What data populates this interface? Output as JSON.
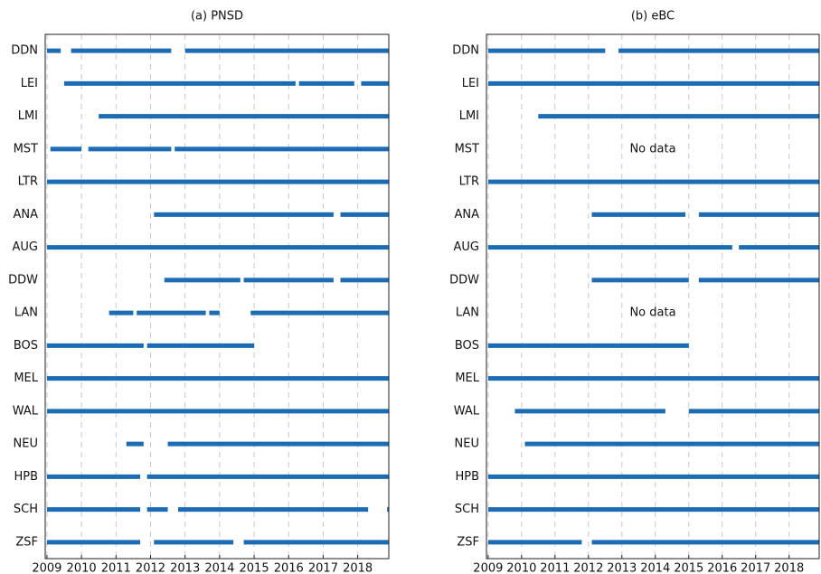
{
  "chart_data": [
    {
      "type": "timeline",
      "title": "(a) PNSD",
      "color": "#1c6cb4",
      "grid": true,
      "categories": [
        "DDN",
        "LEI",
        "LMI",
        "MST",
        "LTR",
        "ANA",
        "AUG",
        "DDW",
        "LAN",
        "BOS",
        "MEL",
        "WAL",
        "NEU",
        "HPB",
        "SCH",
        "ZSF"
      ],
      "ranges": [
        [
          [
            2009.0,
            2009.4
          ],
          [
            2009.7,
            2012.6
          ],
          [
            2013.0,
            2018.9
          ]
        ],
        [
          [
            2009.5,
            2016.2
          ],
          [
            2016.3,
            2017.9
          ],
          [
            2018.1,
            2018.9
          ]
        ],
        [
          [
            2010.5,
            2018.9
          ]
        ],
        [
          [
            2009.1,
            2010.0
          ],
          [
            2010.2,
            2012.6
          ],
          [
            2012.7,
            2018.9
          ]
        ],
        [
          [
            2009.0,
            2018.9
          ]
        ],
        [
          [
            2012.1,
            2017.3
          ],
          [
            2017.5,
            2018.9
          ]
        ],
        [
          [
            2009.0,
            2018.9
          ]
        ],
        [
          [
            2012.4,
            2014.6
          ],
          [
            2014.7,
            2017.3
          ],
          [
            2017.5,
            2018.9
          ]
        ],
        [
          [
            2010.8,
            2011.5
          ],
          [
            2011.6,
            2013.6
          ],
          [
            2013.7,
            2014.0
          ],
          [
            2014.9,
            2018.9
          ]
        ],
        [
          [
            2009.0,
            2011.8
          ],
          [
            2011.9,
            2015.0
          ]
        ],
        [
          [
            2009.0,
            2018.9
          ]
        ],
        [
          [
            2009.0,
            2018.9
          ]
        ],
        [
          [
            2011.3,
            2011.8
          ],
          [
            2012.5,
            2018.9
          ]
        ],
        [
          [
            2009.0,
            2011.7
          ],
          [
            2011.9,
            2018.9
          ]
        ],
        [
          [
            2009.0,
            2011.7
          ],
          [
            2011.9,
            2012.5
          ],
          [
            2012.8,
            2018.3
          ],
          [
            2018.85,
            2018.9
          ]
        ],
        [
          [
            2009.0,
            2011.7
          ],
          [
            2012.1,
            2014.4
          ],
          [
            2014.7,
            2018.9
          ]
        ]
      ],
      "annotations": [],
      "xlim": [
        2008.95,
        2018.9
      ],
      "xticks": [
        2009,
        2010,
        2011,
        2012,
        2013,
        2014,
        2015,
        2016,
        2017,
        2018
      ]
    },
    {
      "type": "timeline",
      "title": "(b) eBC",
      "color": "#1c6cb4",
      "grid": true,
      "categories": [
        "DDN",
        "LEI",
        "LMI",
        "MST",
        "LTR",
        "ANA",
        "AUG",
        "DDW",
        "LAN",
        "BOS",
        "MEL",
        "WAL",
        "NEU",
        "HPB",
        "SCH",
        "ZSF"
      ],
      "ranges": [
        [
          [
            2009.0,
            2012.5
          ],
          [
            2012.9,
            2018.9
          ]
        ],
        [
          [
            2009.0,
            2018.9
          ]
        ],
        [
          [
            2010.5,
            2018.9
          ]
        ],
        [],
        [
          [
            2009.0,
            2018.9
          ]
        ],
        [
          [
            2012.1,
            2014.9
          ],
          [
            2015.3,
            2018.9
          ]
        ],
        [
          [
            2009.0,
            2016.3
          ],
          [
            2016.5,
            2018.9
          ]
        ],
        [
          [
            2012.1,
            2015.0
          ],
          [
            2015.3,
            2018.9
          ]
        ],
        [],
        [
          [
            2009.0,
            2015.0
          ]
        ],
        [
          [
            2009.0,
            2018.9
          ]
        ],
        [
          [
            2009.8,
            2014.3
          ],
          [
            2015.0,
            2018.9
          ]
        ],
        [
          [
            2010.1,
            2018.9
          ]
        ],
        [
          [
            2009.0,
            2018.9
          ]
        ],
        [
          [
            2009.0,
            2018.9
          ]
        ],
        [
          [
            2009.0,
            2011.8
          ],
          [
            2012.1,
            2018.9
          ]
        ]
      ],
      "annotations": [
        {
          "text": "No data",
          "category": "MST"
        },
        {
          "text": "No data",
          "category": "LAN"
        }
      ],
      "xlim": [
        2008.95,
        2018.9
      ],
      "xticks": [
        2009,
        2010,
        2011,
        2012,
        2013,
        2014,
        2015,
        2016,
        2017,
        2018
      ]
    }
  ]
}
